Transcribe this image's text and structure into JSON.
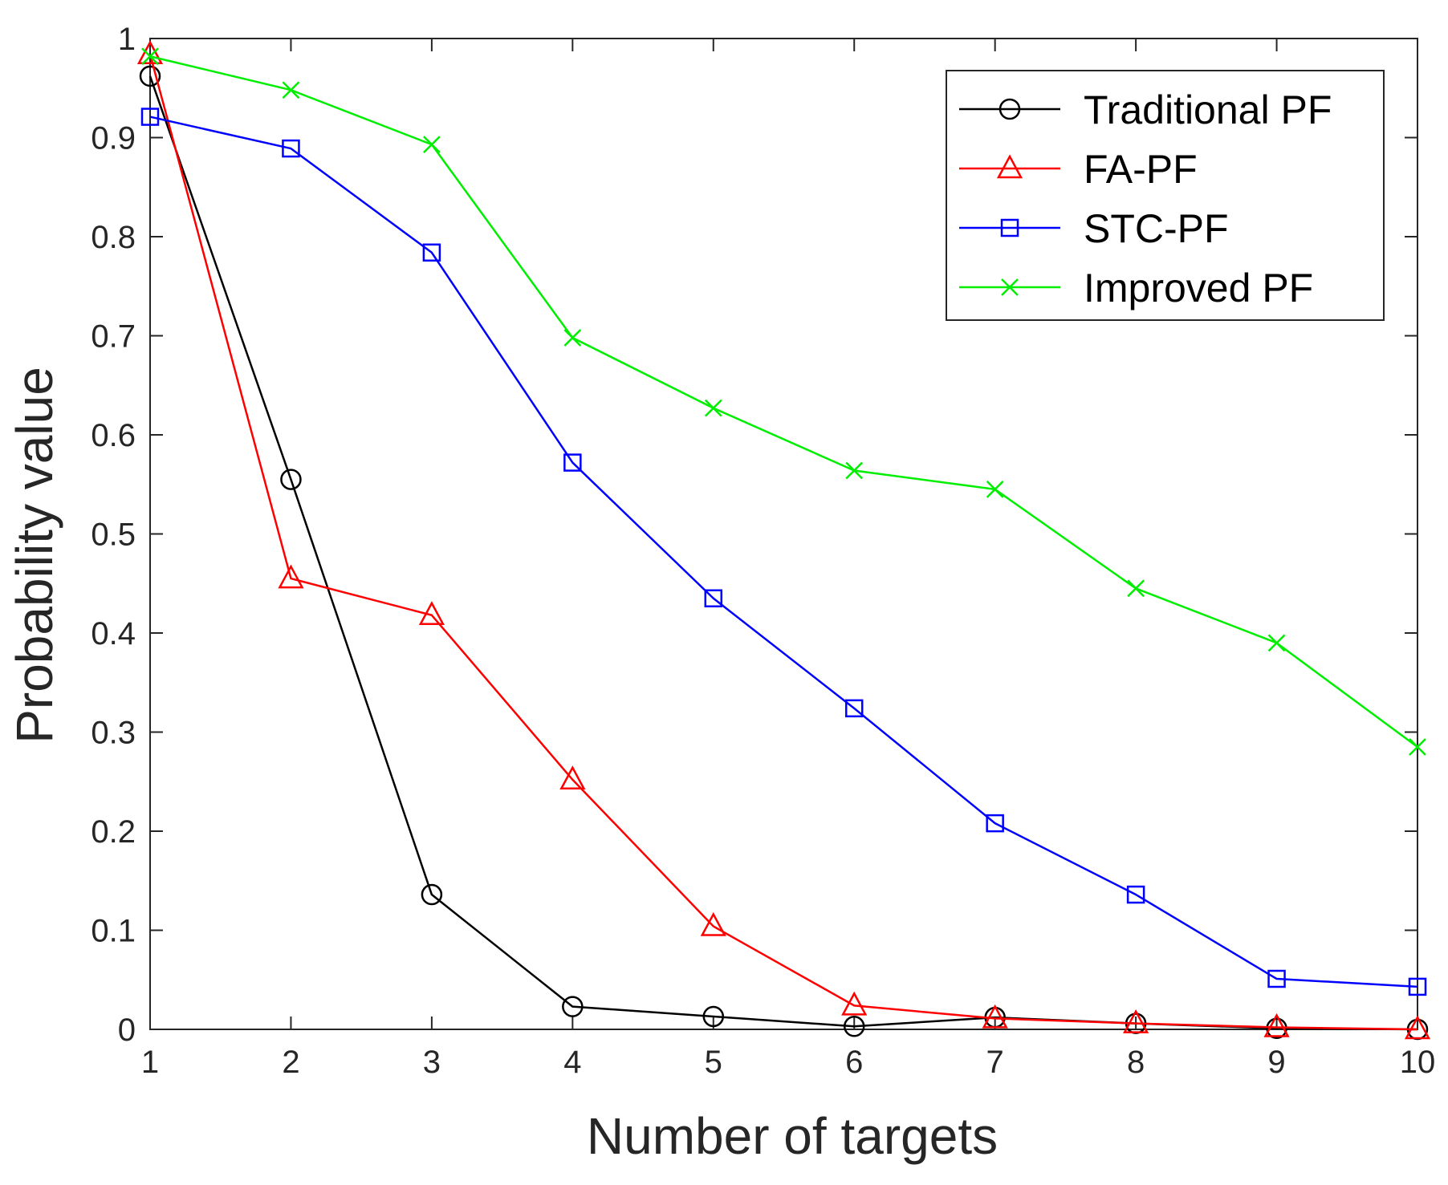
{
  "chart_data": {
    "type": "line",
    "title": "",
    "xlabel": "Number of targets",
    "ylabel": "Probability value",
    "x": [
      1,
      2,
      3,
      4,
      5,
      6,
      7,
      8,
      9,
      10
    ],
    "xlim": [
      1,
      10
    ],
    "ylim": [
      0,
      1
    ],
    "xticks": [
      "1",
      "2",
      "3",
      "4",
      "5",
      "6",
      "7",
      "8",
      "9",
      "10"
    ],
    "yticks": [
      "0",
      "0.1",
      "0.2",
      "0.3",
      "0.4",
      "0.5",
      "0.6",
      "0.7",
      "0.8",
      "0.9",
      "1"
    ],
    "grid": false,
    "legend_position": "top-right",
    "series": [
      {
        "name": "Traditional PF",
        "color": "#000000",
        "marker": "circle",
        "values": [
          0.962,
          0.555,
          0.136,
          0.023,
          0.013,
          0.003,
          0.012,
          0.006,
          0.001,
          0.0
        ]
      },
      {
        "name": "FA-PF",
        "color": "#ff0000",
        "marker": "triangle",
        "values": [
          0.984,
          0.455,
          0.418,
          0.252,
          0.104,
          0.024,
          0.011,
          0.006,
          0.002,
          0.0
        ]
      },
      {
        "name": "STC-PF",
        "color": "#0000ff",
        "marker": "square",
        "values": [
          0.921,
          0.889,
          0.784,
          0.572,
          0.435,
          0.324,
          0.208,
          0.136,
          0.051,
          0.043
        ]
      },
      {
        "name": "Improved PF",
        "color": "#00ee00",
        "marker": "x",
        "values": [
          0.982,
          0.948,
          0.893,
          0.698,
          0.627,
          0.564,
          0.545,
          0.445,
          0.39,
          0.285
        ]
      }
    ]
  }
}
